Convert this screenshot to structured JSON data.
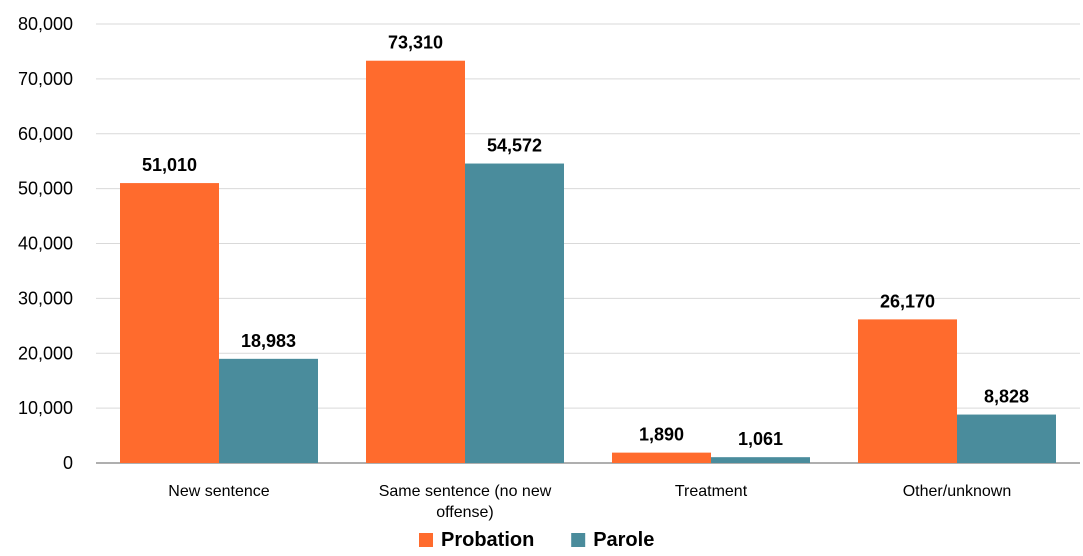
{
  "chart_data": {
    "type": "bar",
    "title": "",
    "xlabel": "",
    "ylabel": "",
    "categories": [
      [
        "New sentence"
      ],
      [
        "Same sentence (no new",
        "offense)"
      ],
      [
        "Treatment"
      ],
      [
        "Other/unknown"
      ]
    ],
    "series": [
      {
        "name": "Probation",
        "color": "#ff6b2d",
        "values": [
          51010,
          73310,
          1890,
          26170
        ],
        "labels": [
          "51,010",
          "73,310",
          "1,890",
          "26,170"
        ]
      },
      {
        "name": "Parole",
        "color": "#4a8c9c",
        "values": [
          18983,
          54572,
          1061,
          8828
        ],
        "labels": [
          "18,983",
          "54,572",
          "1,061",
          "8,828"
        ]
      }
    ],
    "ylim": [
      0,
      80000
    ],
    "yticks": [
      0,
      10000,
      20000,
      30000,
      40000,
      50000,
      60000,
      70000,
      80000
    ],
    "ytick_labels": [
      "0",
      "10,000",
      "20,000",
      "30,000",
      "40,000",
      "50,000",
      "60,000",
      "70,000",
      "80,000"
    ],
    "grid": true,
    "legend": "bottom-center"
  }
}
